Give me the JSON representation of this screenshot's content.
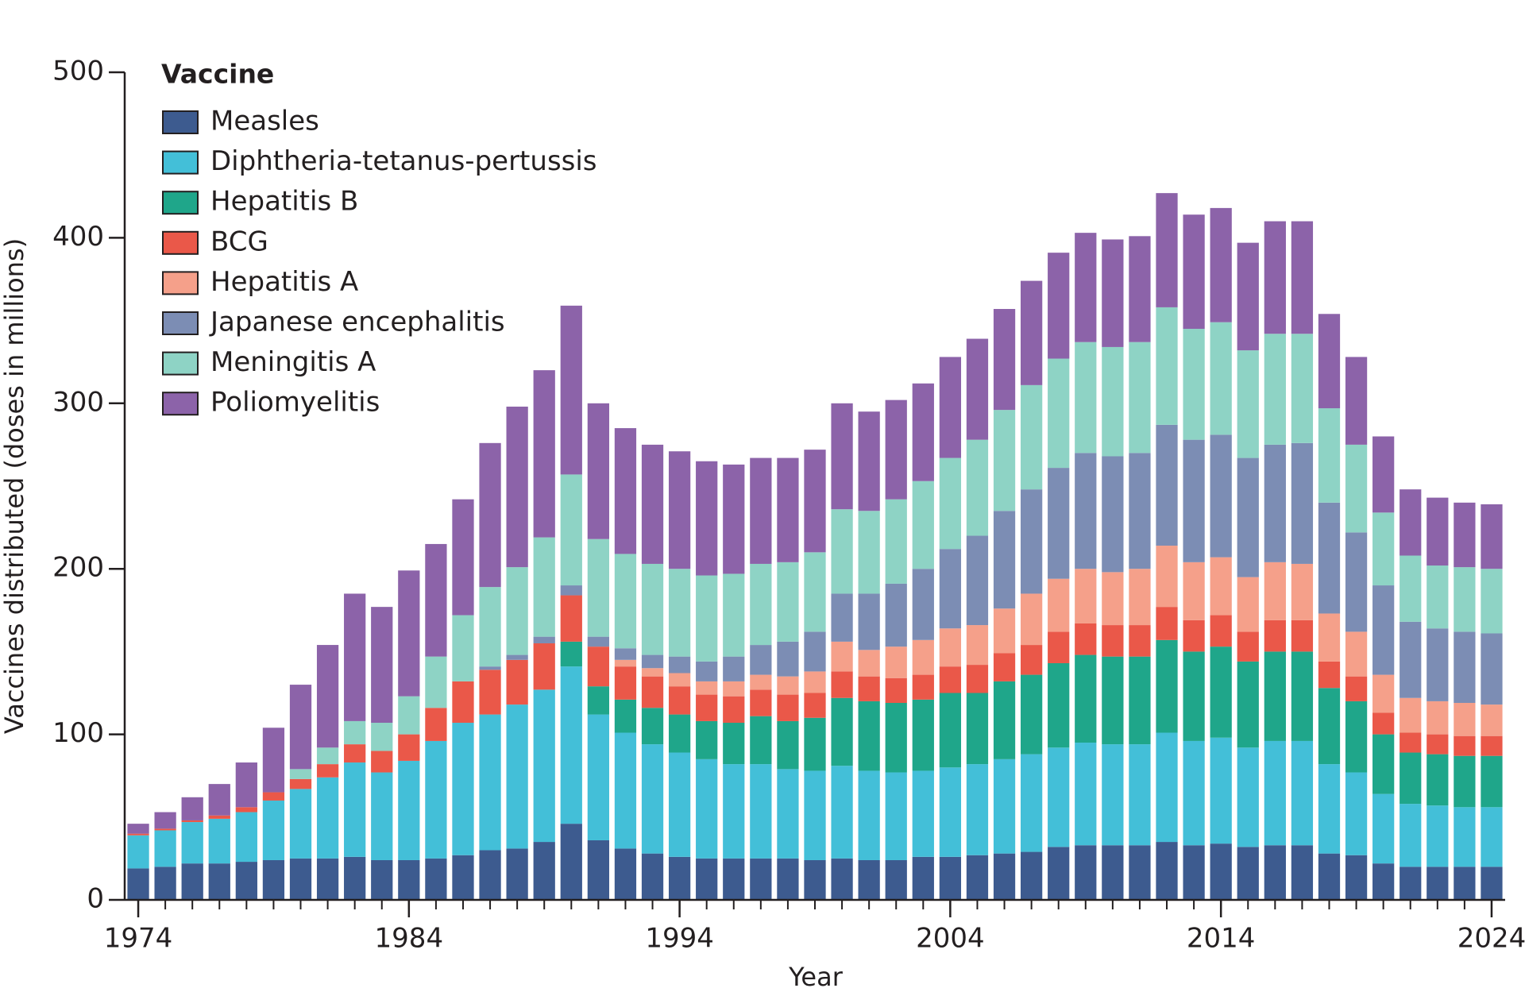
{
  "chart_data": {
    "type": "stacked_bar",
    "xlabel": "Year",
    "ylabel": "Vaccines distributed (doses in millions)",
    "legend_title": "Vaccine",
    "legend": "upper left",
    "x": [
      1974,
      1975,
      1976,
      1977,
      1978,
      1979,
      1980,
      1981,
      1982,
      1983,
      1984,
      1985,
      1986,
      1987,
      1988,
      1989,
      1990,
      1991,
      1992,
      1993,
      1994,
      1995,
      1996,
      1997,
      1998,
      1999,
      2000,
      2001,
      2002,
      2003,
      2004,
      2005,
      2006,
      2007,
      2008,
      2009,
      2010,
      2011,
      2012,
      2013,
      2014,
      2015,
      2016,
      2017,
      2018,
      2019,
      2020,
      2021,
      2022,
      2023,
      2024
    ],
    "xlim": [
      1973.5,
      2024.5
    ],
    "xticks": [
      1974,
      1984,
      1994,
      2004,
      2014,
      2024
    ],
    "ylim": [
      0,
      500
    ],
    "yticks": [
      0,
      100,
      200,
      300,
      400,
      500
    ],
    "series": [
      {
        "name": "Measles",
        "color": "#3d5b8f",
        "values": [
          19,
          20,
          22,
          22,
          23,
          24,
          25,
          25,
          26,
          24,
          24,
          25,
          27,
          30,
          31,
          35,
          46,
          36,
          31,
          28,
          26,
          25,
          25,
          25,
          25,
          24,
          25,
          24,
          24,
          26,
          26,
          27,
          28,
          29,
          32,
          33,
          33,
          33,
          35,
          33,
          34,
          32,
          33,
          33,
          28,
          27,
          22,
          20,
          20,
          20,
          20
        ]
      },
      {
        "name": "Diphtheria-tetanus-pertussis",
        "color": "#43bfd8",
        "values": [
          20,
          22,
          25,
          27,
          30,
          36,
          42,
          49,
          57,
          53,
          60,
          71,
          80,
          82,
          87,
          92,
          95,
          76,
          70,
          66,
          63,
          60,
          57,
          57,
          54,
          54,
          56,
          54,
          53,
          52,
          54,
          55,
          57,
          59,
          60,
          62,
          61,
          61,
          66,
          63,
          64,
          60,
          63,
          63,
          54,
          50,
          42,
          38,
          37,
          36,
          36
        ]
      },
      {
        "name": "Hepatitis B",
        "color": "#1fa68a",
        "values": [
          0,
          0,
          0,
          0,
          0,
          0,
          0,
          0,
          0,
          0,
          0,
          0,
          0,
          0,
          0,
          0,
          15,
          17,
          20,
          22,
          23,
          23,
          25,
          29,
          29,
          32,
          41,
          42,
          42,
          43,
          45,
          43,
          47,
          48,
          51,
          53,
          53,
          53,
          56,
          54,
          55,
          52,
          54,
          54,
          46,
          43,
          36,
          31,
          31,
          31,
          31
        ]
      },
      {
        "name": "BCG",
        "color": "#ea5849",
        "values": [
          1,
          1,
          1,
          2,
          3,
          5,
          6,
          8,
          11,
          13,
          16,
          20,
          25,
          27,
          27,
          28,
          28,
          24,
          20,
          19,
          17,
          16,
          16,
          16,
          16,
          15,
          16,
          15,
          15,
          15,
          16,
          17,
          17,
          18,
          19,
          19,
          19,
          19,
          20,
          19,
          19,
          18,
          19,
          19,
          16,
          15,
          13,
          12,
          12,
          12,
          12
        ]
      },
      {
        "name": "Hepatitis A",
        "color": "#f5a08a",
        "values": [
          0,
          0,
          0,
          0,
          0,
          0,
          0,
          0,
          0,
          0,
          0,
          0,
          0,
          0,
          0,
          0,
          0,
          0,
          4,
          5,
          8,
          8,
          9,
          9,
          11,
          13,
          18,
          16,
          19,
          21,
          23,
          24,
          27,
          31,
          32,
          33,
          32,
          34,
          37,
          35,
          35,
          33,
          35,
          34,
          29,
          27,
          23,
          21,
          20,
          20,
          19
        ]
      },
      {
        "name": "Japanese encephalitis",
        "color": "#7c8db4",
        "values": [
          0,
          0,
          0,
          0,
          0,
          0,
          0,
          0,
          0,
          0,
          0,
          0,
          0,
          2,
          3,
          4,
          6,
          6,
          7,
          8,
          10,
          12,
          15,
          18,
          21,
          24,
          29,
          34,
          38,
          43,
          48,
          54,
          59,
          63,
          67,
          70,
          70,
          70,
          73,
          74,
          74,
          72,
          71,
          73,
          67,
          60,
          54,
          46,
          44,
          43,
          43
        ]
      },
      {
        "name": "Meningitis A",
        "color": "#8ed3c5",
        "values": [
          0,
          0,
          0,
          0,
          0,
          0,
          6,
          10,
          14,
          17,
          23,
          31,
          40,
          48,
          53,
          60,
          67,
          59,
          57,
          55,
          53,
          52,
          50,
          49,
          48,
          48,
          51,
          50,
          51,
          53,
          55,
          58,
          61,
          63,
          66,
          67,
          66,
          67,
          71,
          67,
          68,
          65,
          67,
          66,
          57,
          53,
          44,
          40,
          38,
          39,
          39
        ]
      },
      {
        "name": "Poliomyelitis",
        "color": "#8c63a9",
        "values": [
          6,
          10,
          14,
          19,
          27,
          39,
          51,
          62,
          77,
          70,
          76,
          68,
          70,
          87,
          97,
          101,
          102,
          82,
          76,
          72,
          71,
          69,
          66,
          64,
          63,
          62,
          64,
          60,
          60,
          59,
          61,
          61,
          61,
          63,
          64,
          66,
          65,
          64,
          69,
          69,
          69,
          65,
          68,
          68,
          57,
          53,
          46,
          40,
          41,
          39,
          39
        ]
      }
    ]
  }
}
